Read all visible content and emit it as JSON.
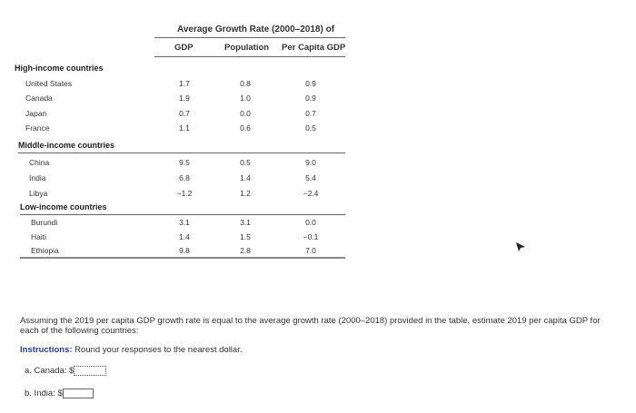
{
  "table": {
    "title": "Average Growth Rate (2000–2018) of",
    "columns": [
      "GDP",
      "Population",
      "Per Capita GDP"
    ],
    "groups": [
      {
        "name": "High-income countries",
        "rows": [
          {
            "country": "United States",
            "gdp": "1.7",
            "population": "0.8",
            "per_capita": "0.9"
          },
          {
            "country": "Canada",
            "gdp": "1.9",
            "population": "1.0",
            "per_capita": "0.9"
          },
          {
            "country": "Japan",
            "gdp": "0.7",
            "population": "0.0",
            "per_capita": "0.7"
          },
          {
            "country": "France",
            "gdp": "1.1",
            "population": "0.6",
            "per_capita": "0.5"
          }
        ]
      },
      {
        "name": "Middle-income countries",
        "rows": [
          {
            "country": "China",
            "gdp": "9.5",
            "population": "0.5",
            "per_capita": "9.0"
          },
          {
            "country": "India",
            "gdp": "6.8",
            "population": "1.4",
            "per_capita": "5.4"
          },
          {
            "country": "Libya",
            "gdp": "−1.2",
            "population": "1.2",
            "per_capita": "−2.4"
          }
        ]
      },
      {
        "name": "Low-income countries",
        "rows": [
          {
            "country": "Burundi",
            "gdp": "3.1",
            "population": "3.1",
            "per_capita": "0.0"
          },
          {
            "country": "Haiti",
            "gdp": "1.4",
            "population": "1.5",
            "per_capita": "−0.1"
          },
          {
            "country": "Ethiopia",
            "gdp": "9.8",
            "population": "2.8",
            "per_capita": "7.0"
          }
        ]
      }
    ]
  },
  "question": {
    "text": "Assuming the 2019 per capita GDP growth rate is equal to the average growth rate (2000–2018) provided in the table, estimate 2019 per capita GDP for each of the following countries:",
    "instructions_label": "Instructions:",
    "instructions_text": " Round your responses to the nearest dollar.",
    "items": [
      {
        "label": "a. Canada: $",
        "value": ""
      },
      {
        "label": "b. India: $",
        "value": ""
      }
    ]
  }
}
